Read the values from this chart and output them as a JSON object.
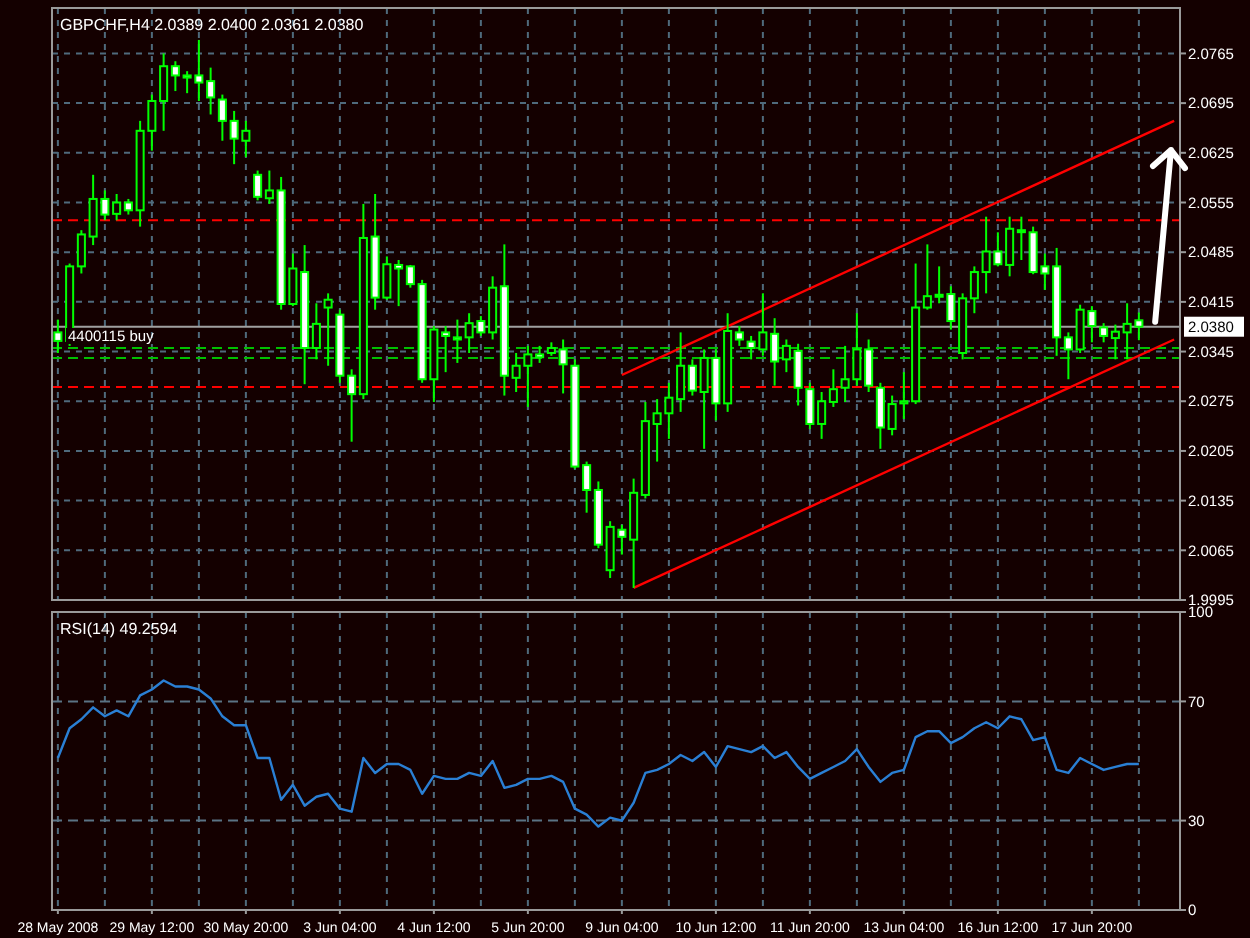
{
  "chart_data": [
    {
      "type": "candlestick",
      "title": "GBPCHF,H4  2.0389 2.0400 2.0361 2.0380",
      "color": "#00ff00",
      "grid": true,
      "tick_labels": "y",
      "ohlc": [
        [
          2.0372,
          2.039,
          2.0343,
          2.036
        ],
        [
          2.036,
          2.0469,
          2.0353,
          2.0465
        ],
        [
          2.0465,
          2.0516,
          2.0455,
          2.051
        ],
        [
          2.0507,
          2.0594,
          2.0495,
          2.056
        ],
        [
          2.056,
          2.0572,
          2.053,
          2.0538
        ],
        [
          2.0539,
          2.0567,
          2.053,
          2.0555
        ],
        [
          2.0555,
          2.056,
          2.0538,
          2.0544
        ],
        [
          2.0544,
          2.067,
          2.0521,
          2.0656
        ],
        [
          2.0656,
          2.0707,
          2.0628,
          2.0698
        ],
        [
          2.0698,
          2.0765,
          2.0656,
          2.0747
        ],
        [
          2.0747,
          2.0754,
          2.0712,
          2.0734
        ],
        [
          2.0734,
          2.074,
          2.0709,
          2.0731
        ],
        [
          2.0734,
          2.0784,
          2.0698,
          2.0724
        ],
        [
          2.0726,
          2.0745,
          2.0679,
          2.0703
        ],
        [
          2.07,
          2.0707,
          2.0642,
          2.067
        ],
        [
          2.067,
          2.0684,
          2.0609,
          2.0645
        ],
        [
          2.0642,
          2.067,
          2.0619,
          2.0656
        ],
        [
          2.0594,
          2.06,
          2.0558,
          2.0563
        ],
        [
          2.0561,
          2.06,
          2.0553,
          2.0572
        ],
        [
          2.0572,
          2.0591,
          2.0404,
          2.0412
        ],
        [
          2.0412,
          2.0483,
          2.0409,
          2.0462
        ],
        [
          2.0457,
          2.0495,
          2.0299,
          2.035
        ],
        [
          2.035,
          2.0413,
          2.0334,
          2.0384
        ],
        [
          2.0407,
          2.0427,
          2.0325,
          2.0418
        ],
        [
          2.0397,
          2.0404,
          2.0301,
          2.0311
        ],
        [
          2.0311,
          2.032,
          2.0218,
          2.0285
        ],
        [
          2.0285,
          2.0553,
          2.0278,
          2.0505
        ],
        [
          2.0507,
          2.0567,
          2.0404,
          2.0421
        ],
        [
          2.0421,
          2.0479,
          2.0418,
          2.0468
        ],
        [
          2.0467,
          2.0474,
          2.0409,
          2.0462
        ],
        [
          2.0465,
          2.0467,
          2.0435,
          2.044
        ],
        [
          2.044,
          2.0446,
          2.0301,
          2.0306
        ],
        [
          2.0306,
          2.0381,
          2.0274,
          2.0376
        ],
        [
          2.0372,
          2.0381,
          2.0316,
          2.0367
        ],
        [
          2.0365,
          2.039,
          2.0329,
          2.0362
        ],
        [
          2.0365,
          2.0399,
          2.0343,
          2.0385
        ],
        [
          2.0388,
          2.0395,
          2.0367,
          2.0372
        ],
        [
          2.0372,
          2.0451,
          2.0362,
          2.0435
        ],
        [
          2.0437,
          2.0496,
          2.0283,
          2.0311
        ],
        [
          2.0308,
          2.0343,
          2.0288,
          2.0325
        ],
        [
          2.0325,
          2.0353,
          2.0267,
          2.0341
        ],
        [
          2.0341,
          2.0353,
          2.0329,
          2.0337
        ],
        [
          2.0343,
          2.0358,
          2.0339,
          2.035
        ],
        [
          2.0348,
          2.0362,
          2.0286,
          2.0327
        ],
        [
          2.0325,
          2.0334,
          2.018,
          2.0183
        ],
        [
          2.0185,
          2.019,
          2.0118,
          2.015
        ],
        [
          2.015,
          2.0162,
          2.0068,
          2.0073
        ],
        [
          2.0037,
          2.0106,
          2.0026,
          2.0098
        ],
        [
          2.0094,
          2.0101,
          2.0059,
          2.0084
        ],
        [
          2.008,
          2.0166,
          2.0012,
          2.0146
        ],
        [
          2.0143,
          2.0274,
          2.0138,
          2.0247
        ],
        [
          2.0243,
          2.0278,
          2.019,
          2.0258
        ],
        [
          2.0258,
          2.0301,
          2.0222,
          2.028
        ],
        [
          2.0278,
          2.0372,
          2.026,
          2.0325
        ],
        [
          2.0325,
          2.0334,
          2.0283,
          2.029
        ],
        [
          2.0288,
          2.0348,
          2.0208,
          2.0336
        ],
        [
          2.0336,
          2.0348,
          2.0248,
          2.0272
        ],
        [
          2.0272,
          2.0399,
          2.026,
          2.0374
        ],
        [
          2.0372,
          2.0381,
          2.0353,
          2.0362
        ],
        [
          2.0359,
          2.0367,
          2.0334,
          2.035
        ],
        [
          2.0348,
          2.0427,
          2.0339,
          2.0372
        ],
        [
          2.037,
          2.0392,
          2.0297,
          2.0331
        ],
        [
          2.0334,
          2.0362,
          2.0316,
          2.0353
        ],
        [
          2.0346,
          2.0356,
          2.0269,
          2.0294
        ],
        [
          2.0292,
          2.0301,
          2.0236,
          2.0243
        ],
        [
          2.0243,
          2.0288,
          2.0222,
          2.0275
        ],
        [
          2.0274,
          2.032,
          2.0267,
          2.0292
        ],
        [
          2.0294,
          2.0353,
          2.0274,
          2.0306
        ],
        [
          2.0306,
          2.0399,
          2.0297,
          2.0348
        ],
        [
          2.0348,
          2.0362,
          2.0288,
          2.0297
        ],
        [
          2.0294,
          2.0301,
          2.0208,
          2.0238
        ],
        [
          2.0236,
          2.0283,
          2.0227,
          2.0271
        ],
        [
          2.0272,
          2.0316,
          2.025,
          2.0275
        ],
        [
          2.0275,
          2.0469,
          2.0271,
          2.0407
        ],
        [
          2.0407,
          2.0496,
          2.0404,
          2.0423
        ],
        [
          2.0423,
          2.0465,
          2.0413,
          2.0425
        ],
        [
          2.0426,
          2.0437,
          2.0376,
          2.0388
        ],
        [
          2.0343,
          2.0427,
          2.0334,
          2.042
        ],
        [
          2.042,
          2.0465,
          2.0399,
          2.0457
        ],
        [
          2.0457,
          2.0535,
          2.0427,
          2.0486
        ],
        [
          2.0486,
          2.0513,
          2.0465,
          2.0468
        ],
        [
          2.0467,
          2.0535,
          2.0451,
          2.0518
        ],
        [
          2.0516,
          2.0535,
          2.0474,
          2.0514
        ],
        [
          2.0513,
          2.0521,
          2.0454,
          2.0457
        ],
        [
          2.0465,
          2.0483,
          2.0432,
          2.0455
        ],
        [
          2.0465,
          2.0491,
          2.0339,
          2.0365
        ],
        [
          2.0365,
          2.0372,
          2.0306,
          2.0348
        ],
        [
          2.0348,
          2.0411,
          2.0343,
          2.0404
        ],
        [
          2.0402,
          2.0409,
          2.0358,
          2.0381
        ],
        [
          2.0379,
          2.0385,
          2.0358,
          2.0367
        ],
        [
          2.0364,
          2.0383,
          2.0334,
          2.0373
        ],
        [
          2.0372,
          2.0413,
          2.0334,
          2.0384
        ],
        [
          2.0389,
          2.04,
          2.0361,
          2.038
        ],
        null,
        null,
        null
      ],
      "series": [
        {
          "type": "line",
          "color": "#ff0000",
          "values": [
            null,
            null,
            null,
            null,
            null,
            null,
            null,
            null,
            null,
            null,
            null,
            null,
            null,
            null,
            null,
            null,
            null,
            null,
            null,
            null,
            null,
            null,
            null,
            null,
            null,
            null,
            null,
            null,
            null,
            null,
            null,
            null,
            null,
            null,
            null,
            null,
            null,
            null,
            null,
            null,
            null,
            null,
            null,
            null,
            null,
            null,
            null,
            null,
            2.0312,
            null,
            null,
            null,
            null,
            null,
            null,
            null,
            null,
            null,
            null,
            null,
            null,
            null,
            null,
            null,
            null,
            null,
            null,
            null,
            null,
            null,
            null,
            null,
            null,
            null,
            null,
            null,
            null,
            null,
            null,
            null,
            null,
            null,
            null,
            null,
            null,
            null,
            null,
            null,
            null,
            null,
            null,
            null,
            null,
            null,
            null,
            2.067
          ]
        },
        {
          "type": "line",
          "color": "#ff0000",
          "values": [
            null,
            null,
            null,
            null,
            null,
            null,
            null,
            null,
            null,
            null,
            null,
            null,
            null,
            null,
            null,
            null,
            null,
            null,
            null,
            null,
            null,
            null,
            null,
            null,
            null,
            null,
            null,
            null,
            null,
            null,
            null,
            null,
            null,
            null,
            null,
            null,
            null,
            null,
            null,
            null,
            null,
            null,
            null,
            null,
            null,
            null,
            null,
            null,
            null,
            2.0012,
            null,
            null,
            null,
            null,
            null,
            null,
            null,
            null,
            null,
            null,
            null,
            null,
            null,
            null,
            null,
            null,
            null,
            null,
            null,
            null,
            null,
            null,
            null,
            null,
            null,
            null,
            null,
            null,
            null,
            null,
            null,
            null,
            null,
            null,
            null,
            null,
            null,
            null,
            null,
            null,
            null,
            null,
            null,
            null,
            null,
            2.0362
          ]
        }
      ],
      "ylim": [
        1.9995,
        2.0829
      ],
      "yticks": [
        1.9995,
        2.0065,
        2.0135,
        2.0205,
        2.0275,
        2.0345,
        2.0415,
        2.0485,
        2.0555,
        2.0625,
        2.0695,
        2.0765
      ],
      "ref_lines": [
        {
          "axis": "y",
          "value": 2.053,
          "color": "#ff0000",
          "line_style": "dashed"
        },
        {
          "axis": "y",
          "value": 2.0295,
          "color": "#ff0000",
          "line_style": "dashed"
        },
        {
          "axis": "y",
          "value": 2.035,
          "color": "#00c000",
          "line_style": "dashed",
          "label": "4400115 buy"
        },
        {
          "axis": "y",
          "value": 2.0336,
          "color": "#00c000",
          "line_style": "dashed"
        },
        {
          "axis": "y",
          "value": 2.038,
          "color": "#a0a0a0",
          "line_style": "solid",
          "label": "2.0380"
        }
      ]
    },
    {
      "type": "line",
      "title": "RSI(14) 49.2594",
      "grid": "x",
      "categories": [
        "28 May 2008",
        null,
        null,
        null,
        null,
        null,
        null,
        null,
        "29 May 12:00",
        null,
        null,
        null,
        null,
        null,
        null,
        null,
        "30 May 20:00",
        null,
        null,
        null,
        null,
        null,
        null,
        null,
        "3 Jun 04:00",
        null,
        null,
        null,
        null,
        null,
        null,
        null,
        "4 Jun 12:00",
        null,
        null,
        null,
        null,
        null,
        null,
        null,
        "5 Jun 20:00",
        null,
        null,
        null,
        null,
        null,
        null,
        null,
        "9 Jun 04:00",
        null,
        null,
        null,
        null,
        null,
        null,
        null,
        "10 Jun 12:00",
        null,
        null,
        null,
        null,
        null,
        null,
        null,
        "11 Jun 20:00",
        null,
        null,
        null,
        null,
        null,
        null,
        null,
        "13 Jun 04:00",
        null,
        null,
        null,
        null,
        null,
        null,
        null,
        "16 Jun 12:00",
        null,
        null,
        null,
        null,
        null,
        null,
        null,
        "17 Jun 20:00",
        null,
        null,
        null,
        null,
        null,
        null,
        null
      ],
      "series": [
        {
          "color": "#2a7fd4",
          "values": [
            51,
            61,
            64,
            68,
            65,
            67,
            65,
            72,
            74,
            77,
            75,
            75,
            74,
            71,
            65,
            62,
            62,
            51,
            51,
            37,
            42,
            35,
            38,
            39,
            34,
            33,
            51,
            46,
            49,
            49,
            47,
            39,
            45,
            44,
            44,
            46,
            45,
            50,
            41,
            42,
            44,
            44,
            45,
            43,
            34,
            32,
            28,
            31,
            30,
            36,
            46,
            47,
            49,
            52,
            50,
            53,
            48,
            55,
            54,
            53,
            55,
            51,
            53,
            48,
            44,
            46,
            48,
            50,
            54,
            48,
            43,
            46,
            47,
            58,
            60,
            60,
            56,
            58,
            61,
            63,
            61,
            65,
            64,
            57,
            58,
            47,
            46,
            51,
            49,
            47,
            48,
            49,
            49,
            null,
            null,
            null
          ]
        }
      ],
      "ylim": [
        0,
        100
      ],
      "yticks": [
        0,
        30,
        70,
        100
      ],
      "ref_lines": [
        {
          "axis": "y",
          "value": 30,
          "color": "#5a7384",
          "line_style": "dashed"
        },
        {
          "axis": "y",
          "value": 70,
          "color": "#5a7384",
          "line_style": "dashed"
        }
      ]
    }
  ]
}
